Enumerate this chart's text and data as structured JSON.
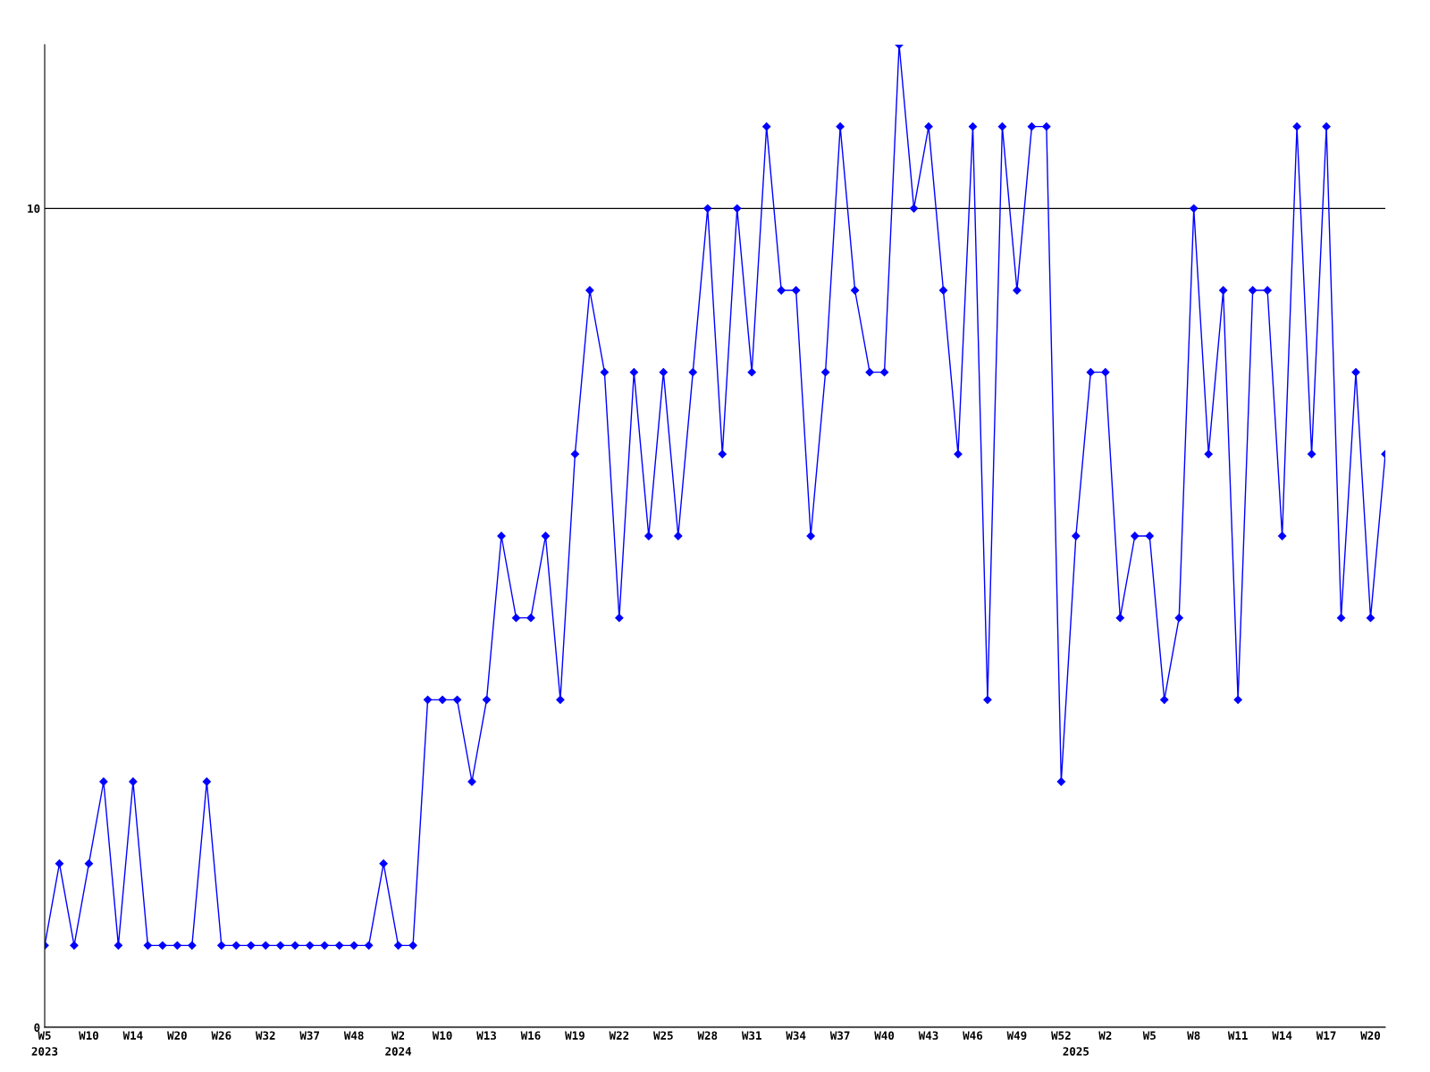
{
  "chart_data": {
    "type": "line",
    "categories": [
      "W5\n2023",
      null,
      null,
      "W10",
      null,
      null,
      "W14",
      null,
      null,
      "W20",
      null,
      null,
      "W26",
      null,
      null,
      "W32",
      null,
      null,
      "W37",
      null,
      null,
      "W48",
      null,
      null,
      "W2\n2024",
      null,
      null,
      "W10",
      null,
      null,
      "W13",
      null,
      null,
      "W16",
      null,
      null,
      "W19",
      null,
      null,
      "W22",
      null,
      null,
      "W25",
      null,
      null,
      "W28",
      null,
      null,
      "W31",
      null,
      null,
      "W34",
      null,
      null,
      "W37",
      null,
      null,
      "W40",
      null,
      null,
      "W43",
      null,
      null,
      "W46",
      null,
      null,
      "W49",
      null,
      null,
      "W52",
      "\n2025",
      null,
      "W2",
      null,
      null,
      "W5",
      null,
      null,
      "W8",
      null,
      null,
      "W11",
      null,
      null,
      "W14",
      null,
      null,
      "W17",
      null,
      null,
      "W20",
      null
    ],
    "series": [
      {
        "color": "#0000ff",
        "values": [
          1,
          2,
          1,
          2,
          3,
          1,
          3,
          1,
          1,
          1,
          1,
          3,
          1,
          1,
          1,
          1,
          1,
          1,
          1,
          1,
          1,
          1,
          1,
          2,
          1,
          1,
          4,
          4,
          4,
          3,
          4,
          6,
          5,
          5,
          6,
          4,
          7,
          9,
          8,
          5,
          8,
          6,
          8,
          6,
          8,
          10,
          7,
          10,
          8,
          11,
          9,
          9,
          6,
          8,
          11,
          9,
          8,
          8,
          12,
          10,
          11,
          9,
          7,
          11,
          4,
          11,
          9,
          11,
          11,
          3,
          6,
          8,
          8,
          5,
          6,
          6,
          4,
          5,
          10,
          7,
          9,
          4,
          9,
          9,
          6,
          11,
          7,
          11,
          5,
          8,
          5,
          7
        ]
      }
    ],
    "ylim": [
      0,
      12
    ],
    "yticks": [
      0,
      10
    ],
    "grid": "y",
    "marker": "diamond",
    "line_style": "solid"
  }
}
